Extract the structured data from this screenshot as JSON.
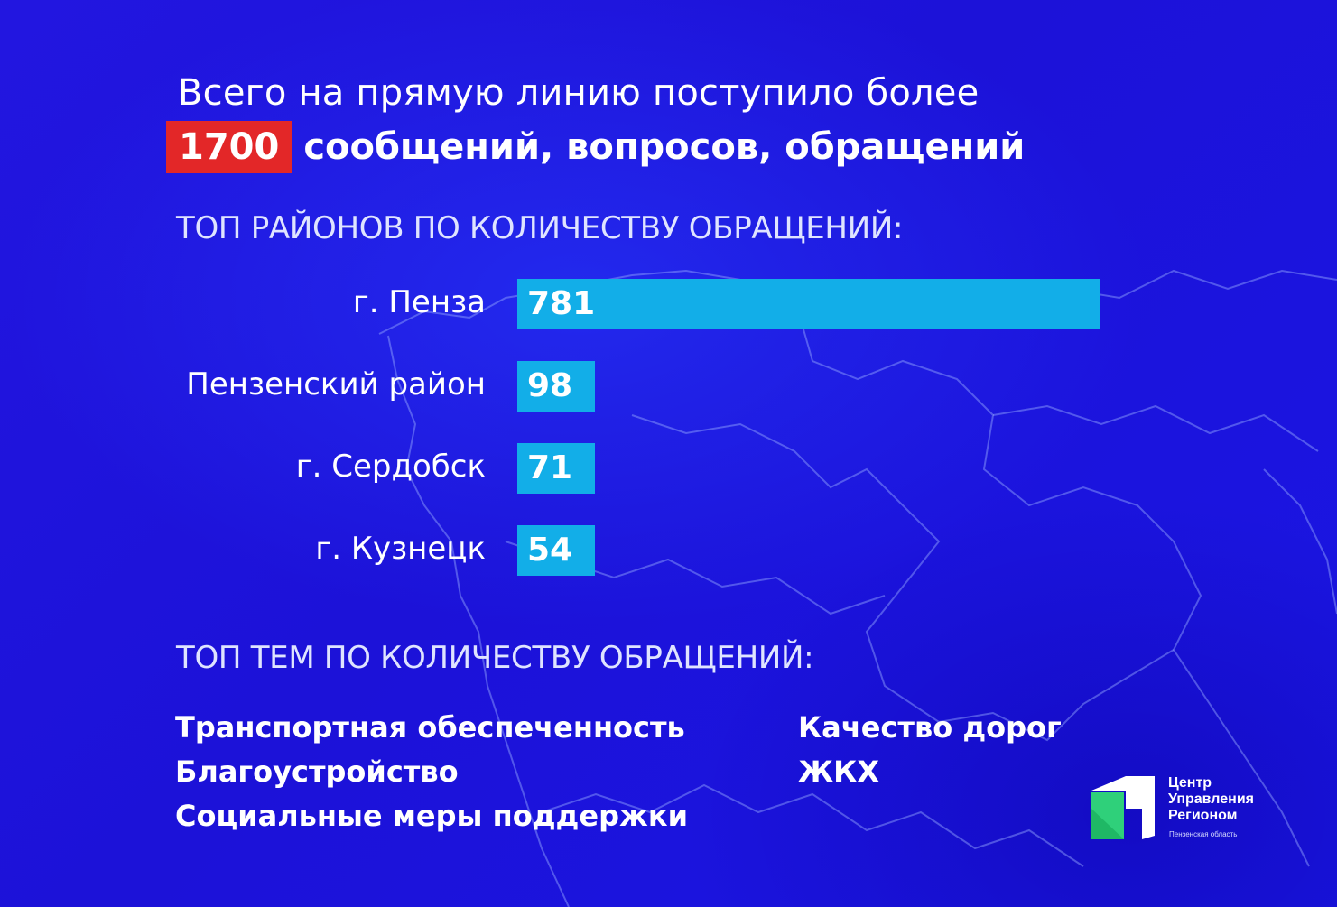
{
  "headline": {
    "line1": "Всего на прямую линию поступило более",
    "highlight": "1700",
    "line2_rest": "сообщений, вопросов, обращений"
  },
  "districts": {
    "title": "ТОП РАЙОНОВ ПО КОЛИЧЕСТВУ ОБРАЩЕНИЙ:"
  },
  "topics": {
    "title": "ТОП ТЕМ ПО КОЛИЧЕСТВУ ОБРАЩЕНИЙ:",
    "column1": [
      "Транспортная обеспеченность",
      "Благоустройство",
      "Социальные меры поддержки"
    ],
    "column2": [
      "Качество дорог",
      "ЖКХ"
    ]
  },
  "chart_data": {
    "type": "bar",
    "orientation": "horizontal",
    "categories": [
      "г. Пенза",
      "Пензенский район",
      "г. Сердобск",
      "г. Кузнецк"
    ],
    "values": [
      781,
      98,
      71,
      54
    ],
    "title": "ТОП РАЙОНОВ ПО КОЛИЧЕСТВУ ОБРАЩЕНИЙ:",
    "xlabel": "",
    "ylabel": "",
    "grid": false,
    "bar_color": "#12aee8"
  },
  "logo": {
    "line1": "Центр",
    "line2": "Управления",
    "line3": "Регионом",
    "subtitle": "Пензенская область"
  },
  "colors": {
    "background": "#1f14e6",
    "highlight": "#e32728",
    "bar": "#12aee8",
    "logo_green": "#2fd07a"
  }
}
